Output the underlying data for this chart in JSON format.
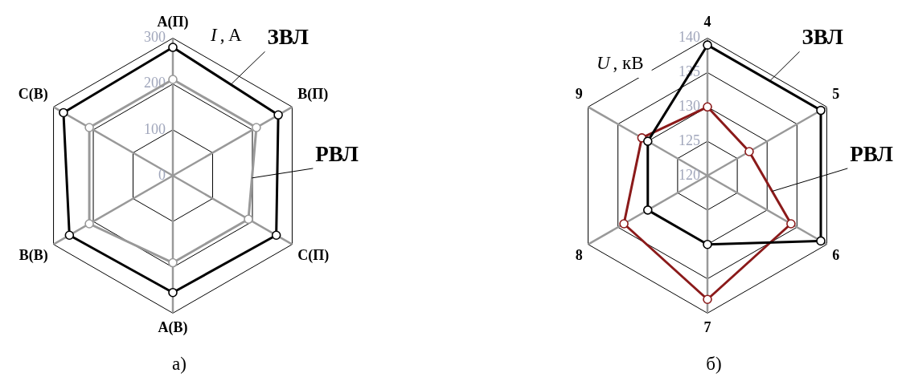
{
  "chart_data": [
    {
      "type": "radar",
      "title": "а)",
      "ylabel": "I, A",
      "categories": [
        "A(П)",
        "B(П)",
        "C(П)",
        "A(В)",
        "B(В)",
        "C(В)"
      ],
      "series": [
        {
          "name": "ЗВЛ",
          "color": "#000000",
          "values": [
            280,
            265,
            260,
            255,
            260,
            275
          ]
        },
        {
          "name": "РВЛ",
          "color": "#999999",
          "values": [
            210,
            210,
            190,
            190,
            210,
            210
          ]
        }
      ],
      "ylim": [
        0,
        300
      ],
      "yticks": [
        0,
        100,
        200,
        300
      ],
      "grid": true,
      "marker": "circle"
    },
    {
      "type": "radar",
      "title": "б)",
      "ylabel": "U, кВ",
      "categories": [
        "4",
        "5",
        "6",
        "7",
        "8",
        "9"
      ],
      "series": [
        {
          "name": "ЗВЛ",
          "color": "#000000",
          "values": [
            139,
            139,
            139,
            130,
            130,
            130
          ]
        },
        {
          "name": "РВЛ",
          "color": "#8b1a1a",
          "values": [
            130,
            127,
            134,
            138,
            134,
            131
          ]
        }
      ],
      "ylim": [
        120,
        140
      ],
      "yticks": [
        120,
        125,
        130,
        135,
        140
      ],
      "grid": true,
      "marker": "circle"
    }
  ]
}
